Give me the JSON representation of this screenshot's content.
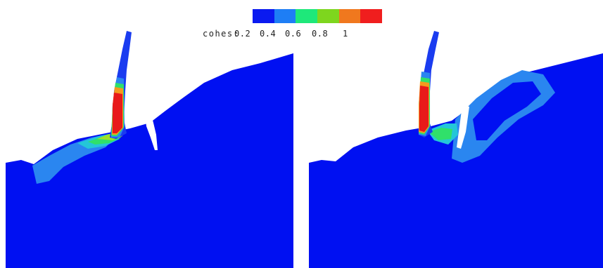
{
  "legend": {
    "label": "cohes:",
    "ticks": [
      "0.2",
      "0.4",
      "0.6",
      "0.8",
      "1"
    ],
    "colors": [
      "#0a1af0",
      "#1e7ef5",
      "#1ee87a",
      "#7ed61e",
      "#f0781e",
      "#f01e1e"
    ]
  },
  "panels": [
    {
      "name": "left-simulation"
    },
    {
      "name": "right-simulation"
    }
  ],
  "palette": {
    "background": "#ffffff",
    "deep_blue": "#0010f2",
    "light_blue": "#2a86f0",
    "cyan": "#24c6d8",
    "green": "#30e06a",
    "yellow_green": "#9ee02a",
    "orange": "#f49a1e",
    "red": "#e81a1a"
  }
}
